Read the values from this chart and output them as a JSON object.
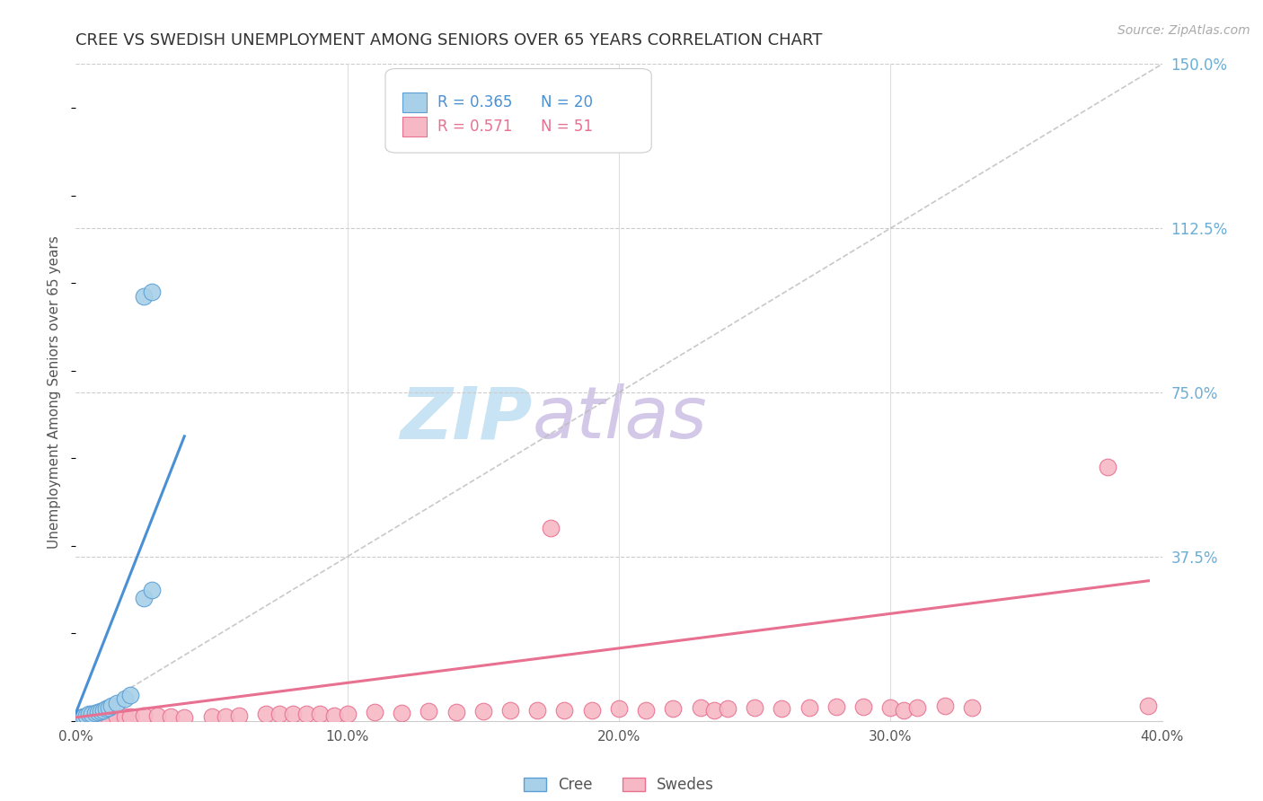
{
  "title": "CREE VS SWEDISH UNEMPLOYMENT AMONG SENIORS OVER 65 YEARS CORRELATION CHART",
  "source": "Source: ZipAtlas.com",
  "ylabel": "Unemployment Among Seniors over 65 years",
  "xlim": [
    0.0,
    0.4
  ],
  "ylim": [
    0.0,
    1.5
  ],
  "xticks": [
    0.0,
    0.1,
    0.2,
    0.3,
    0.4
  ],
  "xticklabels": [
    "0.0%",
    "10.0%",
    "20.0%",
    "30.0%",
    "40.0%"
  ],
  "ytick_vals": [
    0.375,
    0.75,
    1.125,
    1.5
  ],
  "ytick_labels": [
    "37.5%",
    "75.0%",
    "112.5%",
    "150.0%"
  ],
  "cree_R": 0.365,
  "cree_N": 20,
  "swedes_R": 0.571,
  "swedes_N": 51,
  "cree_fill": "#a8d0e8",
  "cree_edge": "#5b9fd4",
  "swedes_fill": "#f5b8c4",
  "swedes_edge": "#e87090",
  "cree_line_color": "#4a90d4",
  "swedes_line_color": "#e87090",
  "ytick_color": "#6aaed6",
  "title_color": "#333333",
  "watermark_zip_color": "#c8e4f4",
  "watermark_atlas_color": "#d4c8e8",
  "cree_x": [
    0.0,
    0.002,
    0.003,
    0.004,
    0.005,
    0.006,
    0.007,
    0.008,
    0.009,
    0.01,
    0.011,
    0.012,
    0.013,
    0.015,
    0.018,
    0.02,
    0.025,
    0.028,
    0.025,
    0.028
  ],
  "cree_y": [
    0.005,
    0.008,
    0.01,
    0.012,
    0.015,
    0.015,
    0.018,
    0.02,
    0.022,
    0.025,
    0.028,
    0.03,
    0.035,
    0.04,
    0.05,
    0.06,
    0.28,
    0.3,
    0.97,
    0.98
  ],
  "swedes_x": [
    0.0,
    0.002,
    0.005,
    0.008,
    0.01,
    0.012,
    0.015,
    0.018,
    0.02,
    0.025,
    0.03,
    0.035,
    0.04,
    0.05,
    0.055,
    0.06,
    0.07,
    0.075,
    0.08,
    0.085,
    0.09,
    0.095,
    0.1,
    0.11,
    0.12,
    0.13,
    0.14,
    0.15,
    0.16,
    0.17,
    0.175,
    0.18,
    0.19,
    0.2,
    0.21,
    0.22,
    0.23,
    0.235,
    0.24,
    0.25,
    0.26,
    0.27,
    0.28,
    0.29,
    0.3,
    0.305,
    0.31,
    0.32,
    0.33,
    0.38,
    0.395
  ],
  "swedes_y": [
    0.005,
    0.008,
    0.01,
    0.005,
    0.008,
    0.008,
    0.01,
    0.01,
    0.01,
    0.012,
    0.012,
    0.01,
    0.008,
    0.01,
    0.01,
    0.012,
    0.015,
    0.015,
    0.015,
    0.015,
    0.015,
    0.012,
    0.015,
    0.02,
    0.018,
    0.022,
    0.02,
    0.022,
    0.025,
    0.025,
    0.44,
    0.025,
    0.025,
    0.028,
    0.025,
    0.028,
    0.03,
    0.025,
    0.028,
    0.03,
    0.028,
    0.03,
    0.032,
    0.032,
    0.03,
    0.025,
    0.03,
    0.035,
    0.03,
    0.58,
    0.035
  ],
  "cree_line_x": [
    0.0,
    0.04
  ],
  "cree_line_y": [
    0.018,
    0.65
  ],
  "swedes_line_x": [
    0.0,
    0.395
  ],
  "swedes_line_y": [
    0.008,
    0.32
  ]
}
